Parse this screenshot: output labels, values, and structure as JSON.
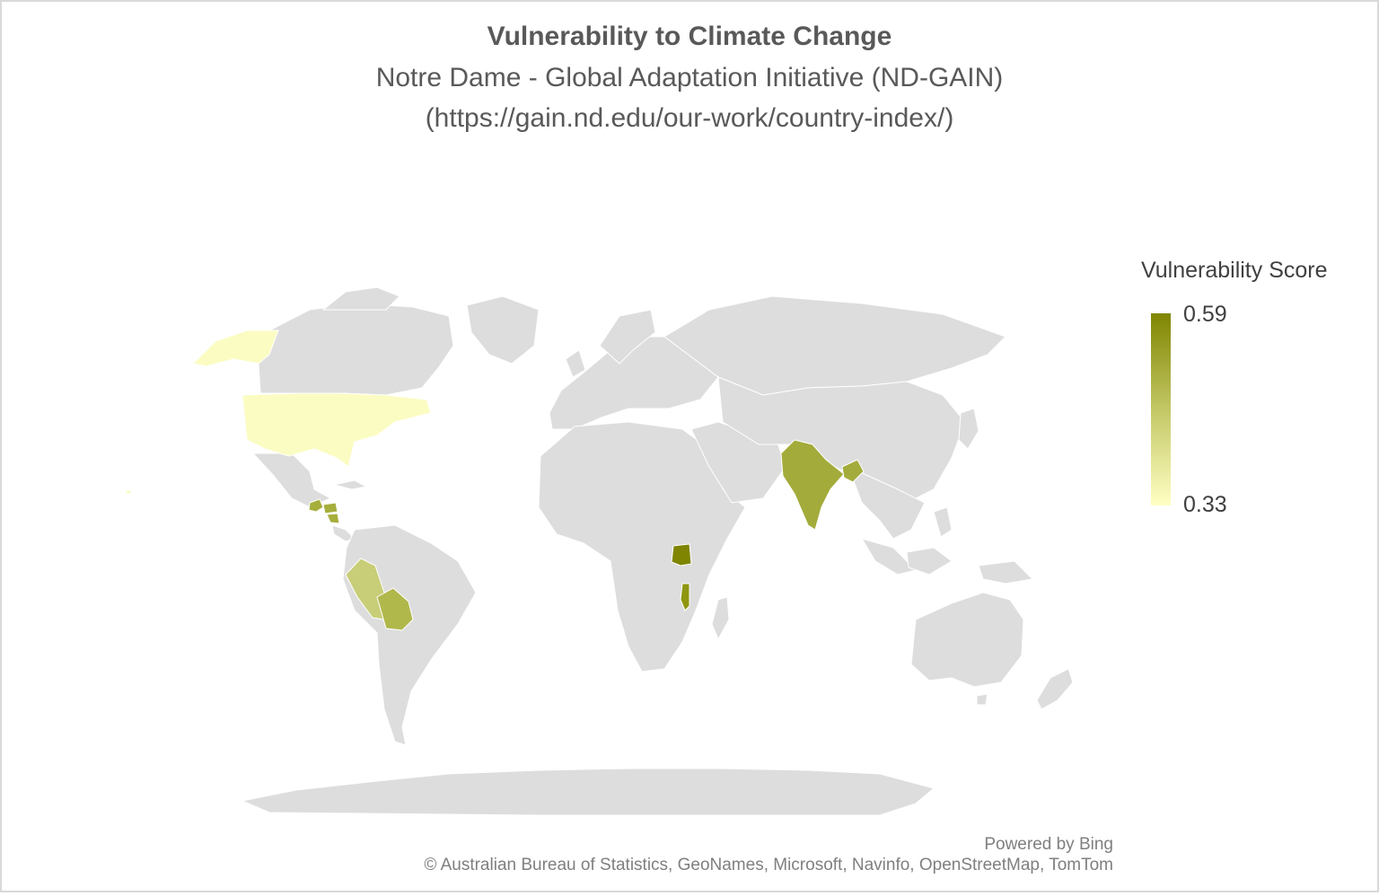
{
  "header": {
    "title": "Vulnerability to Climate Change",
    "subtitle": "Notre Dame - Global Adaptation Initiative (ND-GAIN)",
    "source": "(https://gain.nd.edu/our-work/country-index/)"
  },
  "legend": {
    "title": "Vulnerability Score",
    "max_label": "0.59",
    "min_label": "0.33",
    "color_max": "#7f8500",
    "color_min": "#ffffc4"
  },
  "colors": {
    "land": "#dddddd",
    "border": "#ffffff",
    "background": "#ffffff"
  },
  "chart_data": {
    "type": "choropleth",
    "value_range": [
      0.33,
      0.59
    ],
    "regions": [
      {
        "name": "United States",
        "value": 0.34
      },
      {
        "name": "Alaska",
        "value": 0.34
      },
      {
        "name": "Guatemala",
        "value": 0.48
      },
      {
        "name": "Honduras",
        "value": 0.48
      },
      {
        "name": "Nicaragua",
        "value": 0.48
      },
      {
        "name": "Peru",
        "value": 0.44
      },
      {
        "name": "Bolivia",
        "value": 0.47
      },
      {
        "name": "India",
        "value": 0.51
      },
      {
        "name": "Bangladesh",
        "value": 0.52
      },
      {
        "name": "Uganda",
        "value": 0.59
      },
      {
        "name": "Malawi",
        "value": 0.56
      }
    ]
  },
  "attribution": {
    "powered_by": "Powered by Bing",
    "copyright": "© Australian Bureau of Statistics, GeoNames, Microsoft, Navinfo, OpenStreetMap, TomTom"
  }
}
